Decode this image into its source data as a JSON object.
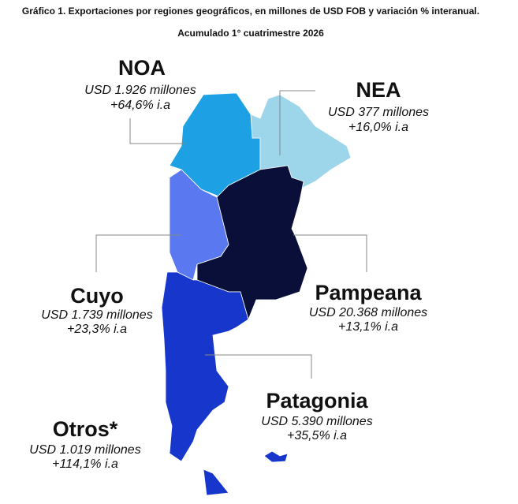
{
  "header": {
    "title": "Gráfico 1. Exportaciones por regiones geográficos, en millones de USD FOB y variación % interanual.",
    "subtitle": "Acumulado 1° cuatrimestre 2026"
  },
  "regions": [
    {
      "name": "NOA",
      "value": "USD 1.926 millones",
      "change": "+64,6% i.a",
      "color": "#1ea0e4"
    },
    {
      "name": "NEA",
      "value": "USD 377 millones",
      "change": "+16,0% i.a",
      "color": "#9dd6ea"
    },
    {
      "name": "Cuyo",
      "value": "USD 1.739 millones",
      "change": "+23,3% i.a",
      "color": "#5a78f0"
    },
    {
      "name": "Pampeana",
      "value": "USD 20.368 millones",
      "change": "+13,1% i.a",
      "color": "#0a0f3a"
    },
    {
      "name": "Patagonia",
      "value": "USD 5.390 millones",
      "change": "+35,5% i.a",
      "color": "#1737cc"
    },
    {
      "name": "Otros*",
      "value": "USD 1.019 millones",
      "change": "+114,1% i.a",
      "color": "#1737cc"
    }
  ]
}
